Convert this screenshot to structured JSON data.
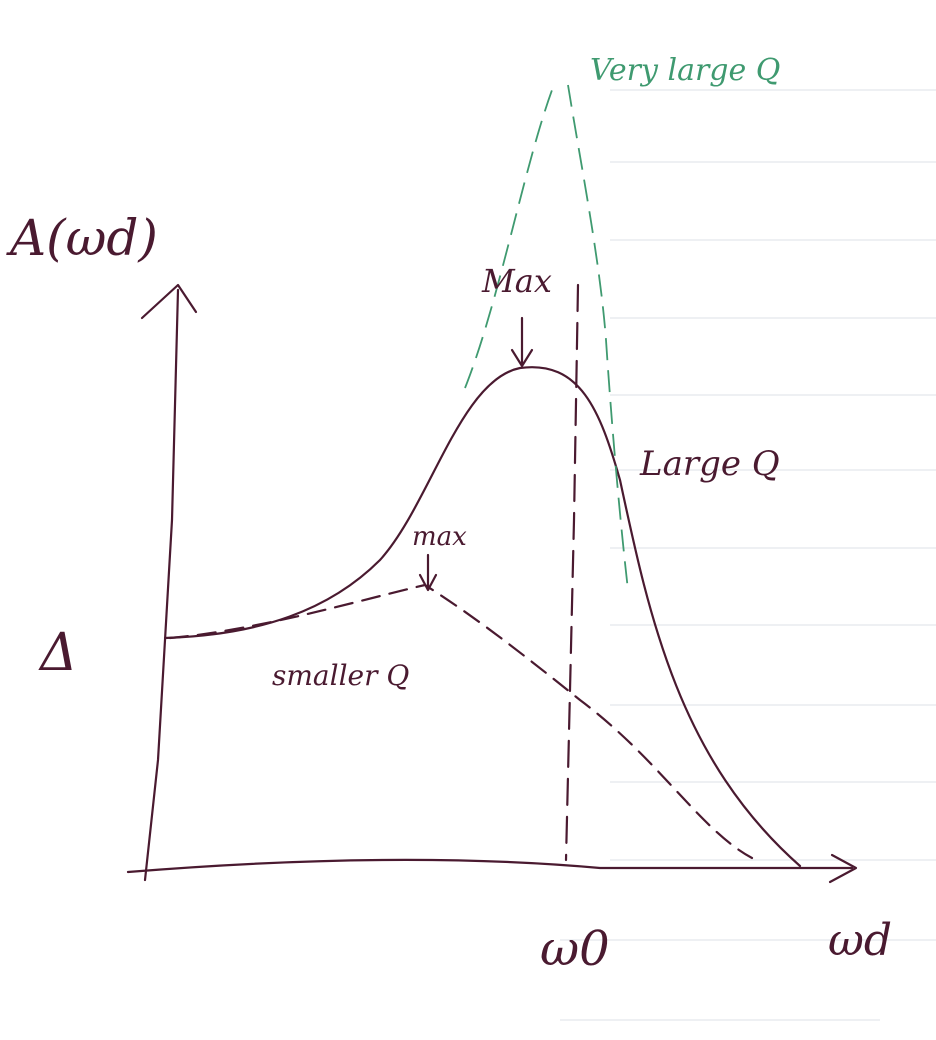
{
  "axes": {
    "y_label": "A(ωd)",
    "x_label": "ωd",
    "x_marker": "ω0",
    "y_marker": "Δ"
  },
  "curves": {
    "very_large_q": "Very large Q",
    "large_q": "Large Q",
    "smaller_q": "smaller Q"
  },
  "annotations": {
    "large_max": "Max",
    "small_max": "max"
  }
}
